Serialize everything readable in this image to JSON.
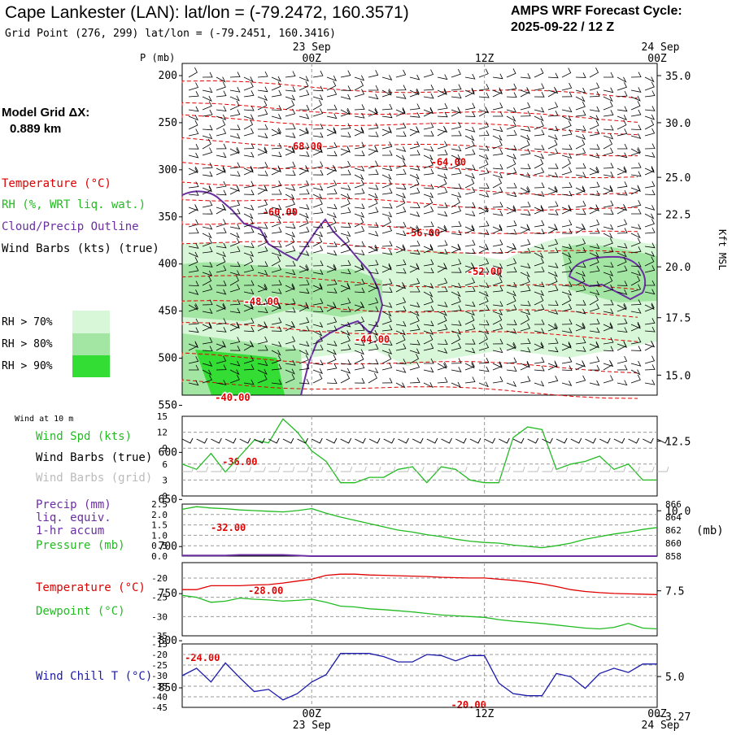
{
  "header": {
    "title": "Cape Lankester (LAN):  lat/lon = (-79.2472, 160.3571)",
    "grid_point": "Grid Point (276, 299) lat/lon = (-79.2451, 160.3416)",
    "forecast_label": "AMPS WRF Forecast Cycle:",
    "forecast_cycle": "2025-09-22 / 12  Z"
  },
  "left_panel": {
    "model_grid_label": "Model Grid ΔX:",
    "model_grid_value": "0.889 km",
    "legend_temperature": "Temperature (°C)",
    "legend_rh": "RH (%, WRT liq. wat.)",
    "legend_cloud": "Cloud/Precip Outline",
    "legend_wind": "Wind Barbs (kts) (true)",
    "rh_70": "RH > 70%",
    "rh_80": "RH > 80%",
    "rh_90": "RH > 90%"
  },
  "colors": {
    "temperature": "#e00000",
    "rh70": "#d8f7d8",
    "rh80": "#a3e6a3",
    "rh90": "#33dd33",
    "cloud": "#6a2fa0",
    "speed": "#22bb22",
    "wind_chill": "#1a1aaa",
    "grid_barb": "#bbbbbb"
  },
  "time_axis": {
    "top_dates": [
      "23  Sep",
      "24  Sep"
    ],
    "bottom_dates": [
      "23  Sep",
      "24  Sep"
    ],
    "labels": [
      "00Z",
      "12Z",
      "00Z"
    ],
    "tick_hours": [
      0,
      12,
      24
    ]
  },
  "chart_data": [
    {
      "type": "line",
      "panel": "sounding",
      "x_range_hours": [
        -9,
        24
      ],
      "ylabel": "P (mb)",
      "y2label": "Kft MSL",
      "pressure_levels": [
        200,
        250,
        300,
        350,
        400,
        450,
        500,
        550,
        600,
        650,
        700,
        750,
        800,
        850
      ],
      "height_labels": [
        {
          "p": 200,
          "label": "35.0"
        },
        {
          "p": 250,
          "label": "30.0"
        },
        {
          "p": 308,
          "label": "25.0"
        },
        {
          "p": 347,
          "label": "22.5"
        },
        {
          "p": 403,
          "label": "20.0"
        },
        {
          "p": 457,
          "label": "17.5"
        },
        {
          "p": 518,
          "label": "15.0"
        },
        {
          "p": 588,
          "label": "12.5"
        },
        {
          "p": 662,
          "label": "10.0"
        },
        {
          "p": 747,
          "label": "7.5"
        },
        {
          "p": 838,
          "label": "5.0"
        },
        {
          "p": 880,
          "label": "3.27"
        }
      ],
      "temperature_labels": [
        {
          "t": -0.5,
          "p": 275,
          "label": "-68.00"
        },
        {
          "t": 9.5,
          "p": 292,
          "label": "-64.00"
        },
        {
          "t": -2.2,
          "p": 345,
          "label": "-60.00"
        },
        {
          "t": 7.7,
          "p": 367,
          "label": "-56.00"
        },
        {
          "t": 12.0,
          "p": 408,
          "label": "-52.00"
        },
        {
          "t": -3.5,
          "p": 440,
          "label": "-48.00"
        },
        {
          "t": 4.2,
          "p": 480,
          "label": "-44.00"
        },
        {
          "t": -5.5,
          "p": 542,
          "label": "-40.00"
        },
        {
          "t": -5.0,
          "p": 610,
          "label": "-36.00"
        },
        {
          "t": -5.8,
          "p": 680,
          "label": "-32.00"
        },
        {
          "t": -3.2,
          "p": 747,
          "label": "-28.00"
        },
        {
          "t": -7.6,
          "p": 818,
          "label": "-24.00"
        },
        {
          "t": 10.9,
          "p": 868,
          "label": "-20.00"
        }
      ]
    },
    {
      "type": "line",
      "panel": "wind10m",
      "heading": "Wind at 10 m",
      "legend": [
        "Wind Spd (kts)",
        "Wind Barbs (true)",
        "Wind Barbs (grid)"
      ],
      "y_ticks": [
        "15",
        "12",
        "9",
        "6",
        "3",
        "0"
      ],
      "ylim": [
        0,
        15
      ],
      "x_hours": [
        -9,
        -8,
        -7,
        -6,
        -5,
        -4,
        -3,
        -2,
        -1,
        0,
        1,
        2,
        3,
        4,
        5,
        6,
        7,
        8,
        9,
        10,
        11,
        12,
        13,
        14,
        15,
        16,
        17,
        18,
        19,
        20,
        21,
        22,
        23,
        24
      ],
      "speed": [
        6,
        5,
        8,
        4.5,
        7.5,
        10.5,
        10,
        14.5,
        12,
        8.5,
        6.5,
        2.5,
        2.5,
        3.5,
        3.5,
        5,
        5.5,
        2.5,
        5.5,
        5,
        3,
        2.5,
        2.5,
        11,
        13,
        12.5,
        5,
        6,
        6.5,
        7.5,
        5,
        6,
        3,
        3
      ]
    },
    {
      "type": "line",
      "panel": "precip_pressure",
      "legend": [
        "Precip (mm)",
        "liq. equiv.",
        "1-hr accum",
        "Pressure (mb)"
      ],
      "y_ticks": [
        "2.5",
        "2.0",
        "1.5",
        "1.0",
        "0.5",
        "0.0"
      ],
      "y2_ticks": [
        "866",
        "864",
        "862",
        "860",
        "858"
      ],
      "y2label": "(mb)",
      "ylim": [
        0,
        2.5
      ],
      "y2lim": [
        858,
        866
      ],
      "x_hours": [
        -9,
        -8,
        -7,
        -6,
        -5,
        -4,
        -3,
        -2,
        -1,
        0,
        1,
        2,
        3,
        4,
        5,
        6,
        7,
        8,
        9,
        10,
        11,
        12,
        13,
        14,
        15,
        16,
        17,
        18,
        19,
        20,
        21,
        22,
        23,
        24
      ],
      "pressure": [
        865.2,
        865.6,
        865.4,
        865.3,
        865.1,
        865.0,
        864.9,
        864.8,
        865.0,
        865.3,
        864.6,
        864.0,
        863.5,
        863.0,
        862.5,
        862.0,
        861.7,
        861.3,
        861.0,
        860.6,
        860.3,
        860.1,
        860.0,
        859.7,
        859.5,
        859.3,
        859.6,
        860.0,
        860.6,
        861.0,
        861.4,
        861.7,
        862.1,
        862.4
      ],
      "precip": [
        0.03,
        0.03,
        0.03,
        0.03,
        0.06,
        0.06,
        0.06,
        0.06,
        0.03,
        0,
        0,
        0,
        0,
        0,
        0,
        0,
        0,
        0,
        0,
        0,
        0,
        0,
        0,
        0,
        0,
        0,
        0,
        0,
        0,
        0,
        0,
        0,
        0,
        0
      ]
    },
    {
      "type": "line",
      "panel": "temp_dewpoint",
      "legend": [
        "Temperature (°C)",
        "Dewpoint (°C)"
      ],
      "y_ticks": [
        "-20",
        "-25",
        "-30",
        "-35"
      ],
      "ylim": [
        -35,
        -16
      ],
      "x_hours": [
        -9,
        -8,
        -7,
        -6,
        -5,
        -4,
        -3,
        -2,
        -1,
        0,
        1,
        2,
        3,
        4,
        5,
        6,
        7,
        8,
        9,
        10,
        11,
        12,
        13,
        14,
        15,
        16,
        17,
        18,
        19,
        20,
        21,
        22,
        23,
        24
      ],
      "temperature": [
        -23,
        -23,
        -22,
        -22,
        -22,
        -21.8,
        -21.7,
        -21.3,
        -20.8,
        -20.3,
        -19.3,
        -19.0,
        -19.0,
        -19.2,
        -19.3,
        -19.4,
        -19.5,
        -19.6,
        -19.8,
        -19.9,
        -20.0,
        -20.0,
        -20.3,
        -20.6,
        -21.0,
        -21.5,
        -22.2,
        -23,
        -23.5,
        -23.8,
        -24.0,
        -24.1,
        -24.2,
        -24.3
      ],
      "dewpoint": [
        -24.5,
        -25,
        -26.3,
        -26,
        -25.2,
        -25.5,
        -25.7,
        -26,
        -25.8,
        -25.5,
        -26.3,
        -27.3,
        -27.5,
        -28,
        -28.2,
        -28.5,
        -28.8,
        -29.2,
        -29.6,
        -29.8,
        -30.0,
        -30.2,
        -30.8,
        -31.2,
        -31.5,
        -31.8,
        -32.2,
        -32.6,
        -33.0,
        -33.2,
        -32.8,
        -31.8,
        -33.0,
        -33.2
      ]
    },
    {
      "type": "line",
      "panel": "wind_chill",
      "legend": [
        "Wind Chill T (°C)"
      ],
      "y_ticks": [
        "-15",
        "-20",
        "-25",
        "-30",
        "-35",
        "-40",
        "-45"
      ],
      "ylim": [
        -45,
        -15
      ],
      "x_hours": [
        -9,
        -8,
        -7,
        -6,
        -5,
        -4,
        -3,
        -2,
        -1,
        0,
        1,
        2,
        3,
        4,
        5,
        6,
        7,
        8,
        9,
        10,
        11,
        12,
        13,
        14,
        15,
        16,
        17,
        18,
        19,
        20,
        21,
        22,
        23,
        24
      ],
      "wind_chill": [
        -30,
        -26.5,
        -33,
        -24,
        -31,
        -37.5,
        -36.5,
        -41.5,
        -38.5,
        -33,
        -29.5,
        -19.5,
        -19.5,
        -19.5,
        -21,
        -23.5,
        -23.5,
        -20,
        -20.5,
        -23,
        -20.5,
        -20.5,
        -33.5,
        -38.5,
        -39.5,
        -39.5,
        -29,
        -30.5,
        -36,
        -29,
        -26.5,
        -28.5,
        -24.5,
        -24.5
      ]
    }
  ]
}
